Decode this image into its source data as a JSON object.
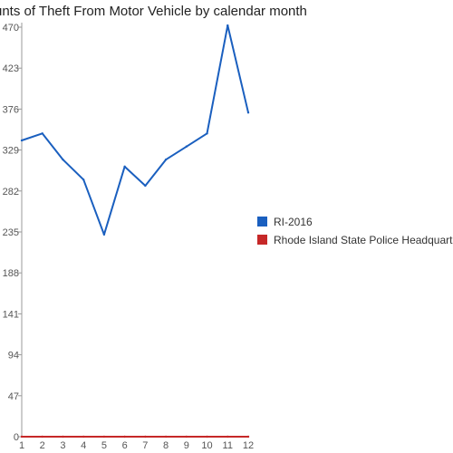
{
  "chart_data": {
    "type": "line",
    "title": "unts of Theft From Motor Vehicle by calendar month",
    "xlabel": "",
    "ylabel": "",
    "categories": [
      "1",
      "2",
      "3",
      "4",
      "5",
      "6",
      "7",
      "8",
      "9",
      "10",
      "11",
      "12"
    ],
    "ylim": [
      0,
      470
    ],
    "yticks": [
      "0",
      "47",
      "94",
      "141",
      "188",
      "235",
      "282",
      "329",
      "376",
      "423",
      "470"
    ],
    "series": [
      {
        "name": "RI-2016",
        "color": "#1a5fbf",
        "values": [
          340,
          348,
          318,
          295,
          232,
          310,
          288,
          318,
          333,
          348,
          472,
          372
        ]
      },
      {
        "name": "Rhode Island State Police Headquarters",
        "color": "#c62828",
        "values": [
          0,
          0,
          0,
          0,
          0,
          0,
          0,
          0,
          0,
          0,
          0,
          0
        ]
      }
    ],
    "grid": false,
    "legend": "right"
  }
}
